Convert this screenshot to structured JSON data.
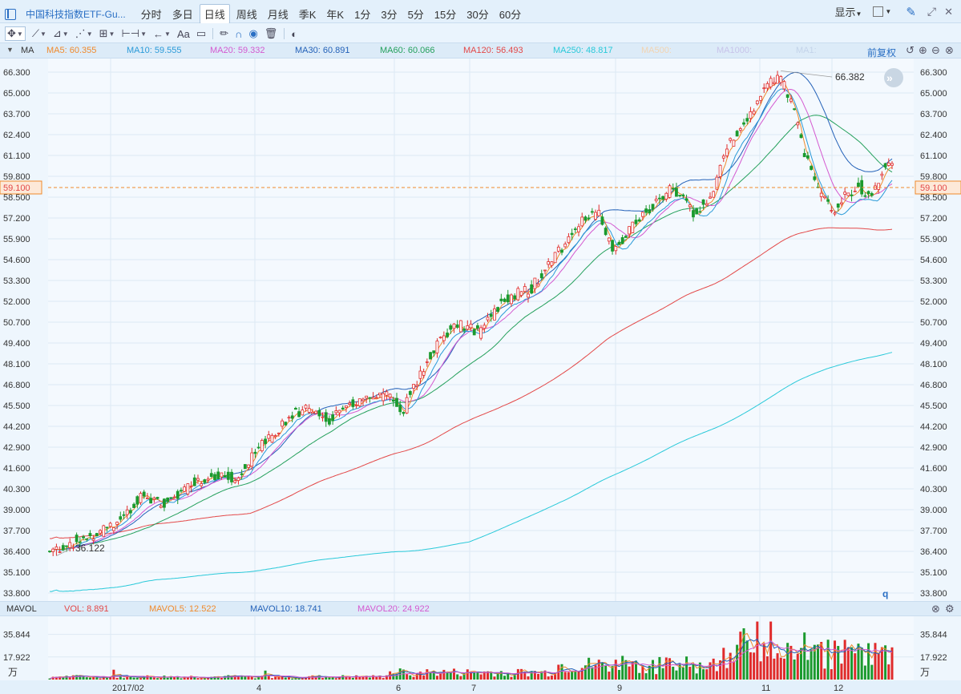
{
  "topbar": {
    "title": "中国科技指数ETF-Gu...",
    "tabs": [
      "分时",
      "多日",
      "日线",
      "周线",
      "月线",
      "季K",
      "年K",
      "1分",
      "3分",
      "5分",
      "15分",
      "30分",
      "60分"
    ],
    "active_tab": "日线",
    "display_label": "显示"
  },
  "toolbar": {
    "text_tool_label": "Aa"
  },
  "ma_bar": {
    "label": "MA",
    "items": [
      {
        "text": "MA5: 60.355",
        "color": "#f08a2c"
      },
      {
        "text": "MA10: 59.555",
        "color": "#2a9ad8"
      },
      {
        "text": "MA20: 59.332",
        "color": "#d459d0"
      },
      {
        "text": "MA30: 60.891",
        "color": "#2361b8"
      },
      {
        "text": "MA60: 60.066",
        "color": "#24a05c"
      },
      {
        "text": "MA120: 56.493",
        "color": "#e34848"
      },
      {
        "text": "MA250: 48.817",
        "color": "#29c9d9"
      },
      {
        "text": "MA500:",
        "color": "#f2d4b2"
      },
      {
        "text": "MA1000:",
        "color": "#c8c4ea"
      },
      {
        "text": "MA1:",
        "color": "#c4d4ea"
      }
    ],
    "adjust_label": "前复权"
  },
  "vol_bar": {
    "label": "MAVOL",
    "items": [
      {
        "text": "VOL: 8.891",
        "color": "#e34848"
      },
      {
        "text": "MAVOL5: 12.522",
        "color": "#f08a2c"
      },
      {
        "text": "MAVOL10: 18.741",
        "color": "#2361b8"
      },
      {
        "text": "MAVOL20: 24.922",
        "color": "#d459d0"
      }
    ]
  },
  "chart_data": {
    "type": "candlestick",
    "y_axis": {
      "ticks": [
        "66.300",
        "65.000",
        "63.700",
        "62.400",
        "61.100",
        "59.800",
        "58.500",
        "57.200",
        "55.900",
        "54.600",
        "53.300",
        "52.000",
        "50.700",
        "49.400",
        "48.100",
        "46.800",
        "45.500",
        "44.200",
        "42.900",
        "41.600",
        "40.300",
        "39.000",
        "37.700",
        "36.400",
        "35.100",
        "33.800"
      ],
      "range": [
        33.8,
        66.3
      ]
    },
    "current_price": "59.100",
    "current_price_value": 59.1,
    "annotations": {
      "high": "66.382",
      "low": "36.122",
      "marker": "q"
    },
    "x_axis_labels": [
      "2017/02",
      "4",
      "6",
      "7",
      "9",
      "11",
      "12"
    ],
    "volume_axis": {
      "ticks": [
        "35.844",
        "17.922"
      ],
      "unit": "万",
      "range": [
        0,
        47
      ]
    },
    "series": [
      {
        "name": "MA5",
        "color": "#f08a2c"
      },
      {
        "name": "MA10",
        "color": "#2a9ad8"
      },
      {
        "name": "MA20",
        "color": "#d459d0"
      },
      {
        "name": "MA30",
        "color": "#2361b8"
      },
      {
        "name": "MA60",
        "color": "#24a05c"
      },
      {
        "name": "MA120",
        "color": "#e34848"
      },
      {
        "name": "MA250",
        "color": "#29c9d9"
      }
    ],
    "keypoints": [
      [
        0,
        36.4
      ],
      [
        20,
        37.2
      ],
      [
        40,
        38.2
      ],
      [
        55,
        39.9
      ],
      [
        68,
        39.3
      ],
      [
        85,
        40.8
      ],
      [
        100,
        41.2
      ],
      [
        110,
        40.9
      ],
      [
        125,
        42.9
      ],
      [
        138,
        44.3
      ],
      [
        152,
        45.4
      ],
      [
        165,
        44.6
      ],
      [
        185,
        45.9
      ],
      [
        200,
        46.1
      ],
      [
        210,
        45.3
      ],
      [
        225,
        48.5
      ],
      [
        240,
        50.6
      ],
      [
        255,
        50.1
      ],
      [
        270,
        52.2
      ],
      [
        285,
        52.7
      ],
      [
        300,
        54.8
      ],
      [
        315,
        56.9
      ],
      [
        325,
        57.6
      ],
      [
        335,
        55.2
      ],
      [
        345,
        56.5
      ],
      [
        360,
        58.2
      ],
      [
        370,
        59.1
      ],
      [
        382,
        57.5
      ],
      [
        392,
        58.4
      ],
      [
        402,
        61.5
      ],
      [
        418,
        64.2
      ],
      [
        432,
        66.3
      ],
      [
        440,
        64.5
      ],
      [
        448,
        61.1
      ],
      [
        455,
        59.3
      ],
      [
        465,
        57.4
      ],
      [
        472,
        58.6
      ],
      [
        480,
        59.2
      ],
      [
        488,
        58.5
      ],
      [
        495,
        60.4
      ],
      [
        500,
        60.6
      ]
    ],
    "ma_final": {
      "MA5": 60.355,
      "MA10": 59.555,
      "MA20": 59.332,
      "MA30": 60.891,
      "MA60": 60.066,
      "MA120": 56.493,
      "MA250": 48.817
    },
    "ma_start": {
      "MA120": 37.2,
      "MA250": 33.9
    },
    "grid": true
  }
}
